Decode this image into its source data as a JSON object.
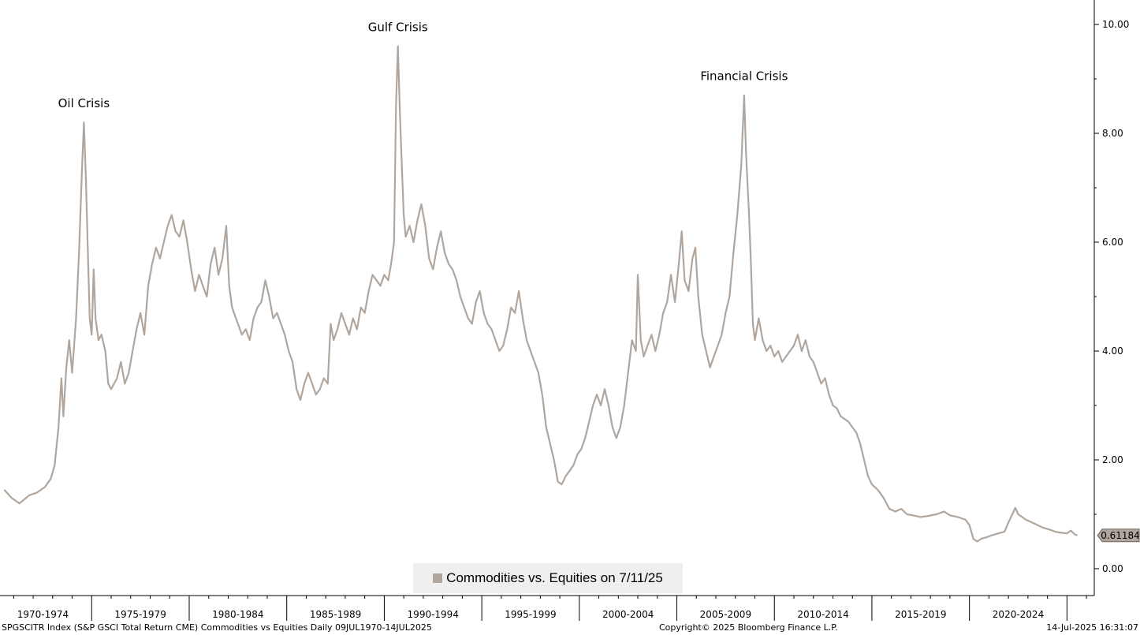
{
  "colors": {
    "series": "#b1a69d",
    "label_box": "#b1a69d"
  },
  "footer": {
    "left": "SPGSCITR Index (S&P GSCI Total Return CME) Commodities vs Equities  Daily 09JUL1970-14JUL2025",
    "center": "Copyright© 2025 Bloomberg Finance L.P.",
    "right": "14-Jul-2025 16:31:07"
  },
  "legend": {
    "label": "Commodities vs. Equities on 7/11/25",
    "placement": "bottom-center"
  },
  "chart_data": {
    "type": "line",
    "series": [
      {
        "name": "Commodities vs. Equities on 7/11/25",
        "last_value_label": "0.61184",
        "points": [
          [
            1970.52,
            1.45
          ],
          [
            1970.9,
            1.3
          ],
          [
            1971.3,
            1.2
          ],
          [
            1971.8,
            1.35
          ],
          [
            1972.2,
            1.4
          ],
          [
            1972.6,
            1.5
          ],
          [
            1972.9,
            1.65
          ],
          [
            1973.1,
            1.9
          ],
          [
            1973.3,
            2.6
          ],
          [
            1973.45,
            3.5
          ],
          [
            1973.55,
            2.8
          ],
          [
            1973.7,
            3.7
          ],
          [
            1973.85,
            4.2
          ],
          [
            1974.0,
            3.6
          ],
          [
            1974.2,
            4.6
          ],
          [
            1974.35,
            5.8
          ],
          [
            1974.5,
            7.3
          ],
          [
            1974.6,
            8.2
          ],
          [
            1974.7,
            7.2
          ],
          [
            1974.8,
            5.9
          ],
          [
            1974.9,
            4.6
          ],
          [
            1975.0,
            4.3
          ],
          [
            1975.1,
            5.5
          ],
          [
            1975.2,
            4.6
          ],
          [
            1975.35,
            4.2
          ],
          [
            1975.5,
            4.3
          ],
          [
            1975.7,
            4.0
          ],
          [
            1975.85,
            3.4
          ],
          [
            1976.0,
            3.3
          ],
          [
            1976.3,
            3.5
          ],
          [
            1976.5,
            3.8
          ],
          [
            1976.7,
            3.4
          ],
          [
            1976.9,
            3.6
          ],
          [
            1977.1,
            4.0
          ],
          [
            1977.3,
            4.4
          ],
          [
            1977.5,
            4.7
          ],
          [
            1977.7,
            4.3
          ],
          [
            1977.9,
            5.2
          ],
          [
            1978.1,
            5.6
          ],
          [
            1978.3,
            5.9
          ],
          [
            1978.5,
            5.7
          ],
          [
            1978.7,
            6.0
          ],
          [
            1978.9,
            6.3
          ],
          [
            1979.1,
            6.5
          ],
          [
            1979.3,
            6.2
          ],
          [
            1979.5,
            6.1
          ],
          [
            1979.7,
            6.4
          ],
          [
            1979.9,
            6.0
          ],
          [
            1980.1,
            5.5
          ],
          [
            1980.3,
            5.1
          ],
          [
            1980.5,
            5.4
          ],
          [
            1980.7,
            5.2
          ],
          [
            1980.9,
            5.0
          ],
          [
            1981.1,
            5.6
          ],
          [
            1981.3,
            5.9
          ],
          [
            1981.5,
            5.4
          ],
          [
            1981.7,
            5.7
          ],
          [
            1981.9,
            6.3
          ],
          [
            1982.05,
            5.2
          ],
          [
            1982.2,
            4.8
          ],
          [
            1982.5,
            4.5
          ],
          [
            1982.7,
            4.3
          ],
          [
            1982.9,
            4.4
          ],
          [
            1983.1,
            4.2
          ],
          [
            1983.3,
            4.6
          ],
          [
            1983.5,
            4.8
          ],
          [
            1983.7,
            4.9
          ],
          [
            1983.9,
            5.3
          ],
          [
            1984.1,
            5.0
          ],
          [
            1984.3,
            4.6
          ],
          [
            1984.5,
            4.7
          ],
          [
            1984.7,
            4.5
          ],
          [
            1984.9,
            4.3
          ],
          [
            1985.1,
            4.0
          ],
          [
            1985.3,
            3.8
          ],
          [
            1985.5,
            3.3
          ],
          [
            1985.7,
            3.1
          ],
          [
            1985.9,
            3.4
          ],
          [
            1986.1,
            3.6
          ],
          [
            1986.3,
            3.4
          ],
          [
            1986.5,
            3.2
          ],
          [
            1986.7,
            3.3
          ],
          [
            1986.9,
            3.5
          ],
          [
            1987.1,
            3.4
          ],
          [
            1987.25,
            4.5
          ],
          [
            1987.4,
            4.2
          ],
          [
            1987.6,
            4.4
          ],
          [
            1987.8,
            4.7
          ],
          [
            1988.0,
            4.5
          ],
          [
            1988.2,
            4.3
          ],
          [
            1988.4,
            4.6
          ],
          [
            1988.6,
            4.4
          ],
          [
            1988.8,
            4.8
          ],
          [
            1989.0,
            4.7
          ],
          [
            1989.2,
            5.1
          ],
          [
            1989.4,
            5.4
          ],
          [
            1989.6,
            5.3
          ],
          [
            1989.8,
            5.2
          ],
          [
            1990.0,
            5.4
          ],
          [
            1990.2,
            5.3
          ],
          [
            1990.35,
            5.6
          ],
          [
            1990.5,
            6.0
          ],
          [
            1990.6,
            8.5
          ],
          [
            1990.7,
            9.6
          ],
          [
            1990.8,
            8.4
          ],
          [
            1990.9,
            7.4
          ],
          [
            1991.0,
            6.5
          ],
          [
            1991.1,
            6.1
          ],
          [
            1991.3,
            6.3
          ],
          [
            1991.5,
            6.0
          ],
          [
            1991.7,
            6.4
          ],
          [
            1991.9,
            6.7
          ],
          [
            1992.1,
            6.3
          ],
          [
            1992.3,
            5.7
          ],
          [
            1992.5,
            5.5
          ],
          [
            1992.7,
            5.9
          ],
          [
            1992.9,
            6.2
          ],
          [
            1993.1,
            5.8
          ],
          [
            1993.3,
            5.6
          ],
          [
            1993.5,
            5.5
          ],
          [
            1993.7,
            5.3
          ],
          [
            1993.9,
            5.0
          ],
          [
            1994.1,
            4.8
          ],
          [
            1994.3,
            4.6
          ],
          [
            1994.5,
            4.5
          ],
          [
            1994.7,
            4.9
          ],
          [
            1994.9,
            5.1
          ],
          [
            1995.1,
            4.7
          ],
          [
            1995.3,
            4.5
          ],
          [
            1995.5,
            4.4
          ],
          [
            1995.7,
            4.2
          ],
          [
            1995.9,
            4.0
          ],
          [
            1996.1,
            4.1
          ],
          [
            1996.3,
            4.4
          ],
          [
            1996.5,
            4.8
          ],
          [
            1996.7,
            4.7
          ],
          [
            1996.9,
            5.1
          ],
          [
            1997.1,
            4.6
          ],
          [
            1997.3,
            4.2
          ],
          [
            1997.5,
            4.0
          ],
          [
            1997.7,
            3.8
          ],
          [
            1997.9,
            3.6
          ],
          [
            1998.1,
            3.2
          ],
          [
            1998.3,
            2.6
          ],
          [
            1998.5,
            2.3
          ],
          [
            1998.7,
            2.0
          ],
          [
            1998.9,
            1.6
          ],
          [
            1999.1,
            1.55
          ],
          [
            1999.3,
            1.7
          ],
          [
            1999.5,
            1.8
          ],
          [
            1999.7,
            1.9
          ],
          [
            1999.9,
            2.1
          ],
          [
            2000.1,
            2.2
          ],
          [
            2000.3,
            2.4
          ],
          [
            2000.5,
            2.7
          ],
          [
            2000.7,
            3.0
          ],
          [
            2000.9,
            3.2
          ],
          [
            2001.1,
            3.0
          ],
          [
            2001.3,
            3.3
          ],
          [
            2001.5,
            3.0
          ],
          [
            2001.7,
            2.6
          ],
          [
            2001.9,
            2.4
          ],
          [
            2002.1,
            2.6
          ],
          [
            2002.3,
            3.0
          ],
          [
            2002.5,
            3.6
          ],
          [
            2002.7,
            4.2
          ],
          [
            2002.9,
            4.0
          ],
          [
            2003.0,
            5.4
          ],
          [
            2003.15,
            4.2
          ],
          [
            2003.3,
            3.9
          ],
          [
            2003.5,
            4.1
          ],
          [
            2003.7,
            4.3
          ],
          [
            2003.9,
            4.0
          ],
          [
            2004.1,
            4.3
          ],
          [
            2004.3,
            4.7
          ],
          [
            2004.5,
            4.9
          ],
          [
            2004.7,
            5.4
          ],
          [
            2004.9,
            4.9
          ],
          [
            2005.1,
            5.6
          ],
          [
            2005.25,
            6.2
          ],
          [
            2005.4,
            5.3
          ],
          [
            2005.6,
            5.1
          ],
          [
            2005.8,
            5.7
          ],
          [
            2005.95,
            5.9
          ],
          [
            2006.1,
            5.0
          ],
          [
            2006.3,
            4.3
          ],
          [
            2006.5,
            4.0
          ],
          [
            2006.7,
            3.7
          ],
          [
            2006.9,
            3.9
          ],
          [
            2007.1,
            4.1
          ],
          [
            2007.3,
            4.3
          ],
          [
            2007.5,
            4.7
          ],
          [
            2007.7,
            5.0
          ],
          [
            2007.9,
            5.8
          ],
          [
            2008.1,
            6.5
          ],
          [
            2008.3,
            7.4
          ],
          [
            2008.45,
            8.7
          ],
          [
            2008.55,
            7.6
          ],
          [
            2008.7,
            6.5
          ],
          [
            2008.8,
            5.6
          ],
          [
            2008.9,
            4.5
          ],
          [
            2009.0,
            4.2
          ],
          [
            2009.2,
            4.6
          ],
          [
            2009.4,
            4.2
          ],
          [
            2009.6,
            4.0
          ],
          [
            2009.8,
            4.1
          ],
          [
            2010.0,
            3.9
          ],
          [
            2010.2,
            4.0
          ],
          [
            2010.4,
            3.8
          ],
          [
            2010.6,
            3.9
          ],
          [
            2010.8,
            4.0
          ],
          [
            2011.0,
            4.1
          ],
          [
            2011.2,
            4.3
          ],
          [
            2011.4,
            4.0
          ],
          [
            2011.6,
            4.2
          ],
          [
            2011.8,
            3.9
          ],
          [
            2012.0,
            3.8
          ],
          [
            2012.2,
            3.6
          ],
          [
            2012.4,
            3.4
          ],
          [
            2012.6,
            3.5
          ],
          [
            2012.8,
            3.2
          ],
          [
            2013.0,
            3.0
          ],
          [
            2013.2,
            2.95
          ],
          [
            2013.4,
            2.8
          ],
          [
            2013.6,
            2.75
          ],
          [
            2013.8,
            2.7
          ],
          [
            2014.0,
            2.6
          ],
          [
            2014.2,
            2.5
          ],
          [
            2014.4,
            2.3
          ],
          [
            2014.6,
            2.0
          ],
          [
            2014.8,
            1.7
          ],
          [
            2015.0,
            1.55
          ],
          [
            2015.3,
            1.45
          ],
          [
            2015.6,
            1.3
          ],
          [
            2015.9,
            1.1
          ],
          [
            2016.2,
            1.05
          ],
          [
            2016.5,
            1.1
          ],
          [
            2016.8,
            1.0
          ],
          [
            2017.1,
            0.98
          ],
          [
            2017.5,
            0.95
          ],
          [
            2017.9,
            0.97
          ],
          [
            2018.3,
            1.0
          ],
          [
            2018.7,
            1.05
          ],
          [
            2019.0,
            0.98
          ],
          [
            2019.4,
            0.95
          ],
          [
            2019.8,
            0.9
          ],
          [
            2020.0,
            0.8
          ],
          [
            2020.2,
            0.55
          ],
          [
            2020.4,
            0.5
          ],
          [
            2020.6,
            0.55
          ],
          [
            2020.9,
            0.58
          ],
          [
            2021.2,
            0.62
          ],
          [
            2021.5,
            0.65
          ],
          [
            2021.8,
            0.68
          ],
          [
            2022.0,
            0.85
          ],
          [
            2022.2,
            1.0
          ],
          [
            2022.35,
            1.12
          ],
          [
            2022.5,
            1.0
          ],
          [
            2022.7,
            0.95
          ],
          [
            2022.9,
            0.9
          ],
          [
            2023.2,
            0.85
          ],
          [
            2023.5,
            0.8
          ],
          [
            2023.8,
            0.75
          ],
          [
            2024.1,
            0.72
          ],
          [
            2024.4,
            0.68
          ],
          [
            2024.7,
            0.66
          ],
          [
            2025.0,
            0.65
          ],
          [
            2025.2,
            0.7
          ],
          [
            2025.4,
            0.63
          ],
          [
            2025.53,
            0.61184
          ]
        ]
      }
    ],
    "x_range": [
      1970.3,
      2026.4
    ],
    "ylim": [
      -0.45,
      10.45
    ],
    "y_ticks": [
      0,
      2,
      4,
      6,
      8,
      10
    ],
    "y_tick_labels": [
      "0.00",
      "2.00",
      "4.00",
      "6.00",
      "8.00",
      "10.00"
    ],
    "x_ticks": [
      1975,
      1980,
      1985,
      1990,
      1995,
      2000,
      2005,
      2010,
      2015,
      2020,
      2025
    ],
    "x_period_labels": [
      {
        "center": 1972.5,
        "label": "1970-1974"
      },
      {
        "center": 1977.5,
        "label": "1975-1979"
      },
      {
        "center": 1982.5,
        "label": "1980-1984"
      },
      {
        "center": 1987.5,
        "label": "1985-1989"
      },
      {
        "center": 1992.5,
        "label": "1990-1994"
      },
      {
        "center": 1997.5,
        "label": "1995-1999"
      },
      {
        "center": 2002.5,
        "label": "2000-2004"
      },
      {
        "center": 2007.5,
        "label": "2005-2009"
      },
      {
        "center": 2012.5,
        "label": "2010-2014"
      },
      {
        "center": 2017.5,
        "label": "2015-2019"
      },
      {
        "center": 2022.5,
        "label": "2020-2024"
      }
    ],
    "annotations": [
      {
        "x": 1974.6,
        "y": 8.2,
        "text": "Oil Crisis"
      },
      {
        "x": 1990.7,
        "y": 9.6,
        "text": "Gulf Crisis"
      },
      {
        "x": 2008.45,
        "y": 8.7,
        "text": "Financial Crisis"
      }
    ],
    "grid": false,
    "y_axis_side": "right"
  }
}
